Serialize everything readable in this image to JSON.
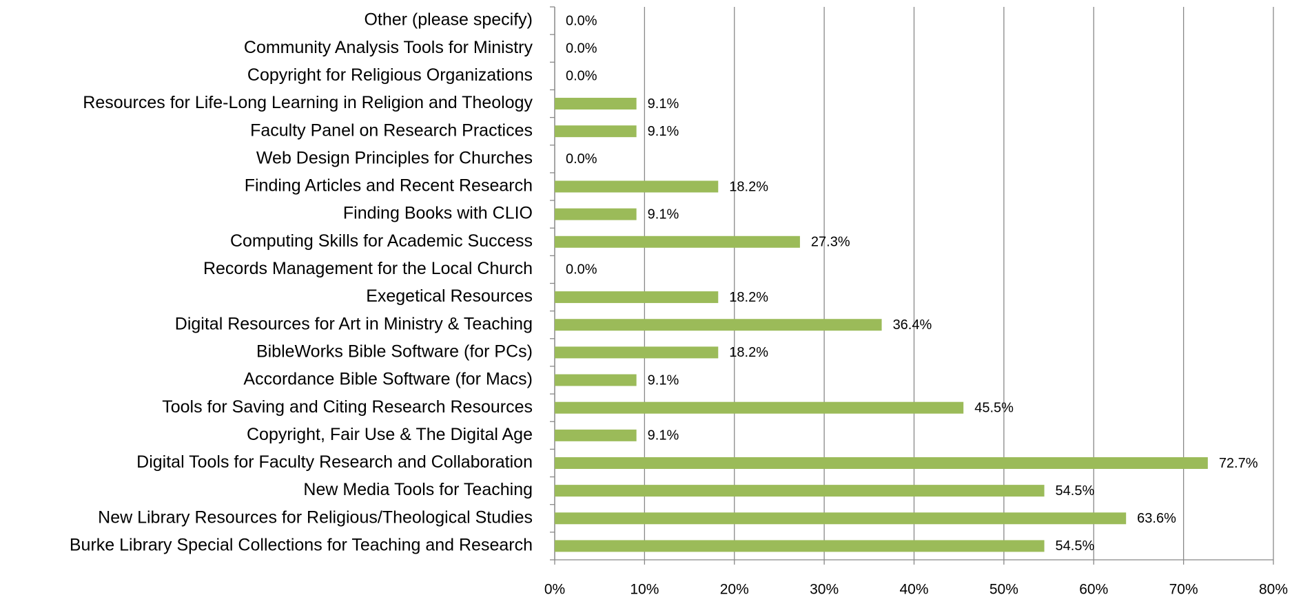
{
  "chart_data": {
    "type": "bar",
    "orientation": "horizontal",
    "categories": [
      "Other (please specify)",
      "Community Analysis Tools for Ministry",
      "Copyright for Religious Organizations",
      "Resources for Life-Long Learning in Religion and Theology",
      "Faculty Panel on Research Practices",
      "Web Design Principles for Churches",
      "Finding Articles and Recent Research",
      "Finding Books with CLIO",
      "Computing Skills for Academic Success",
      "Records Management for the Local Church",
      "Exegetical Resources",
      "Digital Resources for Art in Ministry & Teaching",
      "BibleWorks Bible Software (for PCs)",
      "Accordance Bible Software (for Macs)",
      "Tools for Saving and Citing Research Resources",
      "Copyright, Fair Use & The Digital Age",
      "Digital Tools for Faculty Research and Collaboration",
      "New Media Tools for Teaching",
      "New Library Resources for Religious/Theological Studies",
      "Burke Library Special Collections for Teaching and Research"
    ],
    "values": [
      0.0,
      0.0,
      0.0,
      9.1,
      9.1,
      0.0,
      18.2,
      9.1,
      27.3,
      0.0,
      18.2,
      36.4,
      18.2,
      9.1,
      45.5,
      9.1,
      72.7,
      54.5,
      63.6,
      54.5
    ],
    "value_labels": [
      "0.0%",
      "0.0%",
      "0.0%",
      "9.1%",
      "9.1%",
      "0.0%",
      "18.2%",
      "9.1%",
      "27.3%",
      "0.0%",
      "18.2%",
      "36.4%",
      "18.2%",
      "9.1%",
      "45.5%",
      "9.1%",
      "72.7%",
      "54.5%",
      "63.6%",
      "54.5%"
    ],
    "color": "#9bbb59",
    "xlim": [
      0,
      80
    ],
    "xticks": [
      {
        "value": 0,
        "label": "0%"
      },
      {
        "value": 10,
        "label": "10%"
      },
      {
        "value": 20,
        "label": "20%"
      },
      {
        "value": 30,
        "label": "30%"
      },
      {
        "value": 40,
        "label": "40%"
      },
      {
        "value": 50,
        "label": "50%"
      },
      {
        "value": 60,
        "label": "60%"
      },
      {
        "value": 70,
        "label": "70%"
      },
      {
        "value": 80,
        "label": "80%"
      }
    ],
    "grid": true
  }
}
